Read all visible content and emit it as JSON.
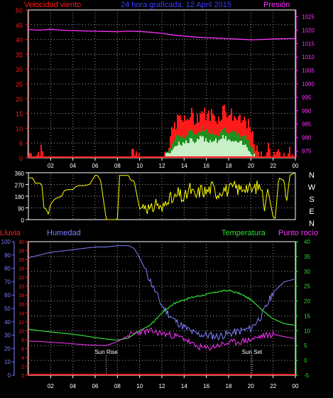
{
  "colors": {
    "background": "#000000",
    "frame": "#ffffff",
    "grid": "#9a9a9a",
    "wind": "#ff1a1a",
    "wind_mid": "#1f8f1f",
    "wind_gust_dark": "#0a3a0a",
    "wind_low": "#c8f0c8",
    "pressure": "#ff33ff",
    "direction": "#ffff00",
    "rain": "#ff2020",
    "humidity": "#7f7fff",
    "temperature": "#33dd33",
    "dewpoint": "#ff33ff",
    "title_blue": "#3b3bff",
    "axis_white": "#ffffff"
  },
  "header": {
    "wind_label": "Velocidad viento",
    "title": "24 hora graficada. 12 April 2015",
    "pressure_label": "Presión"
  },
  "panel2": {
    "compass_labels": [
      "N",
      "W",
      "S",
      "E",
      "N"
    ]
  },
  "panel3": {
    "rain_label": "Lluvia",
    "humidity_label": "Humedad",
    "temperature_label": "Temperatura",
    "dewpoint_label": "Punto rocío",
    "sunrise_label": "Sun Rise",
    "sunset_label": "Sun Set"
  },
  "chart_data": [
    {
      "type": "area",
      "title": "24 hora graficada. 12 April 2015",
      "x_ticks": [
        "02",
        "04",
        "06",
        "08",
        "10",
        "12",
        "14",
        "16",
        "18",
        "20",
        "22",
        "00"
      ],
      "y_left_label": "Velocidad viento",
      "y_left_ticks": [
        0,
        5,
        10,
        15,
        20,
        25,
        30,
        35,
        40,
        45,
        50
      ],
      "y_left_range": [
        0,
        50
      ],
      "y_right_label": "Presión",
      "y_right_ticks": [
        975,
        980,
        985,
        990,
        995,
        1000,
        1005,
        1010,
        1015,
        1020,
        1025
      ],
      "y_right_range": [
        972.5,
        1027.5
      ],
      "grid": true,
      "series": [
        {
          "name": "Velocidad viento",
          "axis": "left",
          "hours": [
            0,
            0.5,
            1,
            1.5,
            2,
            3,
            4,
            5,
            6,
            7,
            8,
            9,
            9.5,
            10,
            11,
            12,
            12.5,
            13,
            13.5,
            14,
            14.5,
            15,
            15.5,
            16,
            16.5,
            17,
            17.5,
            18,
            18.5,
            19,
            19.5,
            20,
            20.5,
            21,
            21.5,
            22,
            22.5,
            23,
            23.5,
            24
          ],
          "gust": [
            2,
            0,
            3,
            0,
            0,
            0,
            0,
            0,
            0,
            0,
            0,
            0,
            3,
            0,
            0,
            0,
            4,
            10,
            14,
            12,
            15,
            13,
            16,
            14,
            15,
            13,
            17,
            15,
            14,
            12,
            13,
            8,
            2,
            0,
            3,
            2,
            3,
            0,
            2,
            1
          ],
          "avg": [
            0,
            0,
            0,
            0,
            0,
            0,
            0,
            0,
            0,
            0,
            0,
            0,
            0,
            0,
            0,
            0,
            2,
            6,
            8,
            7,
            9,
            8,
            10,
            9,
            9,
            8,
            10,
            9,
            8,
            7,
            7,
            4,
            0,
            0,
            0,
            0,
            0,
            0,
            0,
            0
          ],
          "low": [
            0,
            0,
            0,
            0,
            0,
            0,
            0,
            0,
            0,
            0,
            0,
            0,
            0,
            0,
            0,
            0,
            1,
            4,
            5,
            5,
            6,
            5,
            7,
            6,
            6,
            6,
            7,
            6,
            5,
            5,
            4,
            2,
            0,
            0,
            0,
            0,
            0,
            0,
            0,
            0
          ]
        },
        {
          "name": "Presión",
          "axis": "right",
          "hours": [
            0,
            1,
            2,
            3,
            4,
            5,
            6,
            7,
            8,
            9,
            10,
            11,
            12,
            13,
            14,
            15,
            16,
            17,
            18,
            19,
            20,
            21,
            22,
            23,
            24
          ],
          "values": [
            1020.2,
            1020.0,
            1020.3,
            1020.0,
            1019.8,
            1019.7,
            1019.6,
            1019.5,
            1019.4,
            1019.6,
            1019.5,
            1019.2,
            1018.8,
            1018.2,
            1017.8,
            1017.4,
            1017.2,
            1017.0,
            1016.8,
            1016.6,
            1016.4,
            1016.5,
            1016.7,
            1016.8,
            1016.9
          ]
        }
      ]
    },
    {
      "type": "scatter",
      "title": "",
      "y_left_ticks": [
        0,
        90,
        180,
        270,
        360
      ],
      "y_range": [
        0,
        360
      ],
      "y_right_labels": [
        "N",
        "W",
        "S",
        "E",
        "N"
      ],
      "grid": true,
      "series": [
        {
          "name": "",
          "hours": [
            0,
            0.4,
            0.6,
            1,
            1.2,
            1.4,
            1.6,
            1.8,
            2,
            2.4,
            3,
            3.2,
            3.5,
            4,
            4.2,
            4.5,
            5,
            5.5,
            6,
            6.2,
            6.5,
            7,
            7.5,
            8,
            8.2,
            8.5,
            9,
            9.2,
            9.5,
            10,
            10.5,
            11,
            11.5,
            12,
            12.5,
            13,
            13.5,
            14,
            14.5,
            15,
            15.5,
            16,
            16.5,
            17,
            17.5,
            18,
            18.5,
            19,
            19.5,
            20,
            20.5,
            21,
            21.2,
            21.5,
            22,
            22.2,
            22.5,
            23,
            23.2,
            23.5,
            24
          ],
          "values": [
            320,
            320,
            280,
            280,
            270,
            90,
            80,
            40,
            120,
            160,
            180,
            220,
            230,
            230,
            250,
            260,
            260,
            270,
            340,
            340,
            300,
            0,
            0,
            0,
            340,
            340,
            340,
            300,
            300,
            80,
            120,
            60,
            140,
            60,
            180,
            140,
            200,
            150,
            240,
            170,
            230,
            210,
            250,
            200,
            240,
            220,
            250,
            230,
            260,
            220,
            250,
            260,
            50,
            240,
            20,
            10,
            320,
            300,
            120,
            340,
            360
          ]
        }
      ]
    },
    {
      "type": "line",
      "title": "",
      "x_ticks": [
        "02",
        "04",
        "06",
        "08",
        "10",
        "12",
        "14",
        "16",
        "18",
        "20",
        "22",
        "00"
      ],
      "y_rain_label": "Lluvia",
      "y_rain_ticks": [
        0,
        2,
        4,
        6,
        8,
        10,
        12,
        14,
        16,
        18,
        20,
        22,
        24,
        26,
        28,
        30
      ],
      "y_humidity_label": "Humedad",
      "y_humidity_ticks": [
        0,
        10,
        20,
        30,
        40,
        50,
        60,
        70,
        80,
        90,
        100
      ],
      "y_temp_label": "Temperatura",
      "y_temp_ticks": [
        -5,
        0,
        5,
        10,
        15,
        20,
        25,
        30,
        35,
        40
      ],
      "y_temp_range": [
        -5,
        40
      ],
      "grid": true,
      "annotations": [
        {
          "text": "Sun Rise",
          "hour": 7.0
        },
        {
          "text": "Sun Set",
          "hour": 20.1
        }
      ],
      "series": [
        {
          "name": "Lluvia",
          "hours": [
            0,
            24
          ],
          "values": [
            0,
            0
          ]
        },
        {
          "name": "Humedad",
          "hours": [
            0,
            1,
            2,
            3,
            4,
            5,
            6,
            7,
            8,
            9,
            9.5,
            10,
            11,
            12,
            13,
            14,
            15,
            16,
            17,
            18,
            19,
            20,
            21,
            22,
            23,
            24
          ],
          "values": [
            88,
            90,
            92,
            93,
            94,
            95,
            96,
            96,
            97,
            97,
            95,
            88,
            70,
            52,
            42,
            36,
            31,
            30,
            29,
            31,
            33,
            35,
            45,
            62,
            70,
            72
          ]
        },
        {
          "name": "Temperatura",
          "hours": [
            0,
            1,
            2,
            3,
            4,
            5,
            6,
            7,
            8,
            9,
            10,
            11,
            12,
            13,
            14,
            15,
            16,
            17,
            18,
            19,
            20,
            21,
            22,
            23,
            24
          ],
          "values": [
            10.5,
            10.0,
            9.6,
            9.2,
            8.8,
            8.3,
            7.7,
            7.2,
            6.8,
            7.6,
            10.0,
            12.0,
            16.0,
            19.0,
            20.5,
            21.5,
            22.2,
            23.1,
            23.6,
            22.5,
            20.5,
            17.0,
            14.0,
            12.4,
            11.8
          ]
        },
        {
          "name": "Punto rocío",
          "hours": [
            0,
            1,
            2,
            3,
            4,
            5,
            6,
            7,
            8,
            9,
            10,
            11,
            12,
            13,
            14,
            15,
            16,
            17,
            18,
            19,
            20,
            21,
            22,
            23,
            24
          ],
          "values": [
            6.5,
            6.4,
            6.1,
            5.9,
            5.6,
            5.3,
            5.1,
            5.0,
            6.3,
            8.4,
            9.6,
            9.8,
            9.1,
            8.4,
            7.4,
            4.8,
            4.0,
            5.0,
            5.9,
            6.3,
            7.0,
            8.2,
            8.8,
            8.0,
            7.3
          ]
        }
      ]
    }
  ]
}
